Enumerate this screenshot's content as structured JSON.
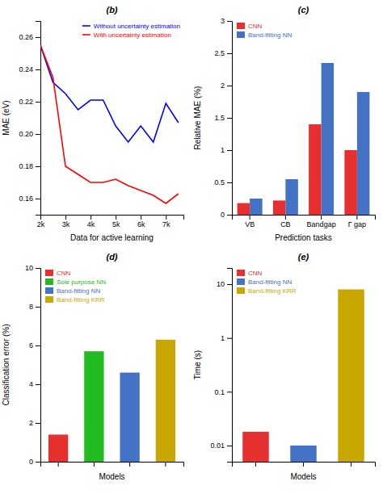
{
  "chart_data": [
    {
      "type": "line",
      "title": "(b)",
      "x": [
        2000,
        2500,
        3000,
        3500,
        4000,
        4500,
        5000,
        5500,
        6000,
        6500,
        7000,
        7500
      ],
      "xlabel": "Data for active learning",
      "ylabel": "MAE (eV)",
      "xlim": [
        2000,
        7700
      ],
      "xticks": [
        {
          "value": 2000,
          "label": "2k"
        },
        {
          "value": 3000,
          "label": "3k"
        },
        {
          "value": 4000,
          "label": "4k"
        },
        {
          "value": 5000,
          "label": "5k"
        },
        {
          "value": 6000,
          "label": "6k"
        },
        {
          "value": 7000,
          "label": "7k"
        }
      ],
      "ylim": [
        0.15,
        0.27
      ],
      "yticks": [
        0.16,
        0.18,
        {
          "value": 0.2,
          "label": "0.20"
        },
        0.22,
        0.24,
        0.26
      ],
      "legend": "upper right",
      "series": [
        {
          "name": "Without uncertainty estimation",
          "color": "blue",
          "values": [
            0.255,
            0.232,
            0.225,
            0.215,
            0.221,
            0.221,
            0.205,
            0.195,
            0.205,
            0.195,
            0.219,
            0.207
          ]
        },
        {
          "name": "With uncertainty estimation",
          "color": "red",
          "values": [
            0.255,
            0.235,
            0.18,
            0.175,
            0.17,
            0.17,
            0.172,
            0.168,
            0.165,
            0.162,
            0.157,
            0.163
          ]
        }
      ]
    },
    {
      "type": "bar",
      "title": "(c)",
      "categories": [
        "VB",
        "CB",
        "Bandgap",
        "Γ gap"
      ],
      "xlabel": "Prediction tasks",
      "ylabel": "Relative MAE (%)",
      "ylim": [
        0,
        3
      ],
      "yticks": [
        0,
        0.5,
        1,
        1.5,
        2,
        2.5,
        3
      ],
      "legend": "upper left",
      "series": [
        {
          "name": "CNN",
          "color": "#e63030",
          "values": [
            0.18,
            0.22,
            1.4,
            1.0
          ]
        },
        {
          "name": "Band-fitting NN",
          "color": "#4472c4",
          "values": [
            0.25,
            0.55,
            2.35,
            1.9
          ]
        }
      ]
    },
    {
      "type": "bar",
      "title": "(d)",
      "categories": [
        "CNN",
        "Sole purpose NN",
        "Band-fitting NN",
        "Band-fitting KRR"
      ],
      "values": [
        1.4,
        5.7,
        4.6,
        6.3
      ],
      "colors": [
        "#e63030",
        "#22bb22",
        "#4472c4",
        "#c8a800"
      ],
      "xlabel": "Models",
      "ylabel": "Classification error (%)",
      "ylim": [
        0,
        10
      ],
      "yticks": [
        0,
        2,
        4,
        6,
        8,
        10
      ],
      "legend": "upper left",
      "tick_labels": "y"
    },
    {
      "type": "bar",
      "title": "(e)",
      "categories": [
        "CNN",
        "Band-fitting NN",
        "Band-fitting KRR"
      ],
      "values": [
        0.018,
        0.01,
        8.0
      ],
      "colors": [
        "#e63030",
        "#4472c4",
        "#c8a800"
      ],
      "xlabel": "Models",
      "ylabel": "Time (s)",
      "log": "y",
      "ylim": [
        0.005,
        20
      ],
      "yticks": [
        0.01,
        0.1,
        1,
        10
      ],
      "legend": "upper left",
      "tick_labels": "y"
    }
  ]
}
